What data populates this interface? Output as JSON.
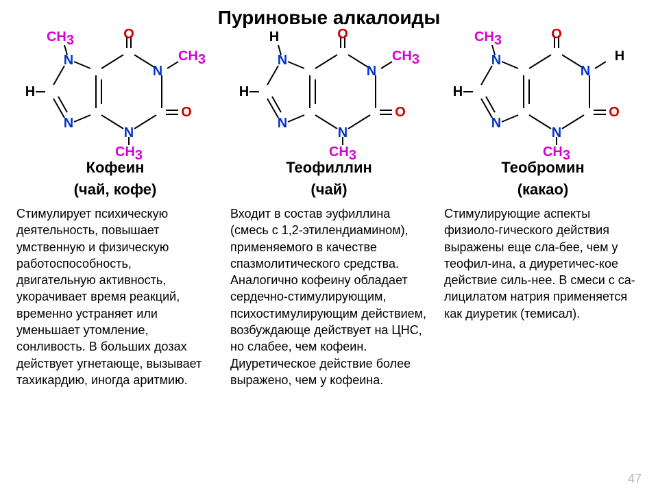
{
  "title": "Пуриновые алкалоиды",
  "pageNumber": "47",
  "compounds": [
    {
      "name": "Кофеин",
      "source": "(чай, кофе)",
      "subst": {
        "n1": "CH3",
        "n3": "CH3",
        "n7": "CH3"
      },
      "description": "Стимулирует психическую деятельность, повышает умственную и физическую работоспособность, двигательную активность, укорачивает время реакций, временно устраняет или уменьшает утомление, сонливость. В больших дозах действует угнетающе, вызывает тахикардию, иногда аритмию."
    },
    {
      "name": "Теофиллин",
      "source": "(чай)",
      "subst": {
        "n1": "CH3",
        "n3": "CH3",
        "n7": "H"
      },
      "description": "Входит в состав эуфиллина (смесь с 1,2-этилендиамином), применяемого в качестве спазмолитического средства. Аналогично кофеину обладает сердечно-стимулирующим, психостимулирующим действием, возбуждающе действует на ЦНС, но слабее, чем кофеин. Диуретическое действие более выражено, чем у кофеина."
    },
    {
      "name": "Теобромин",
      "source": "(какао)",
      "subst": {
        "n1": "H",
        "n3": "CH3",
        "n7": "CH3"
      },
      "description": "Стимулирующие аспекты физиоло-гического действия выражены еще сла-бее, чем у теофил-ина, а диуретичес-кое действие силь-нее. В смеси с са-лицилатом натрия применяется как диуретик (темисал)."
    }
  ],
  "colors": {
    "nitrogen": "#0033cc",
    "oxygen": "#cc0000",
    "methyl": "#d400d4",
    "hydrogen": "#000000",
    "bond": "#000000",
    "background": "#ffffff",
    "text": "#000000",
    "pageNum": "#b8b8b8"
  }
}
